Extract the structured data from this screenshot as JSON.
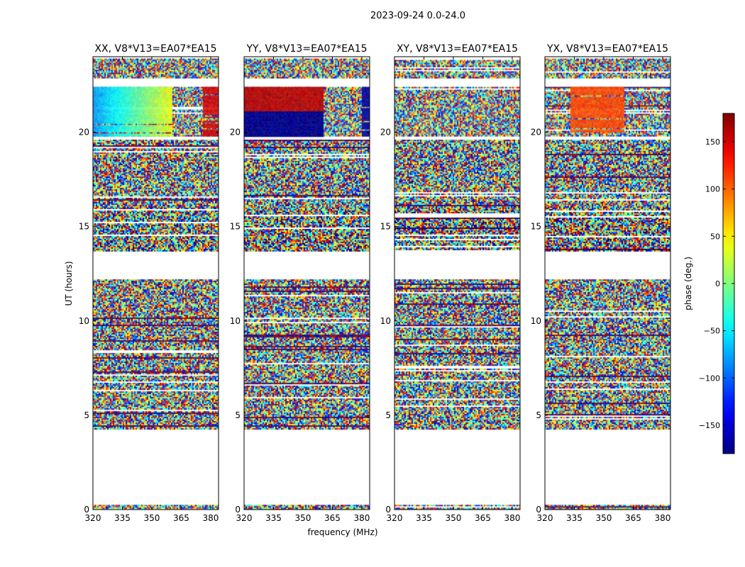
{
  "chart_data": {
    "type": "heatmap",
    "suptitle": "2023-09-24 0.0-24.0",
    "xlabel": "frequency (MHz)",
    "ylabel": "UT (hours)",
    "xlim": [
      320,
      384
    ],
    "ylim": [
      0,
      24
    ],
    "xticks": [
      320,
      335,
      350,
      365,
      380
    ],
    "yticks": [
      0,
      5,
      10,
      15,
      20
    ],
    "panels": [
      {
        "title": "XX, V8*V13=EA07*EA15",
        "blocks": [
          {
            "f": [
              320,
              360
            ],
            "t": [
              19.8,
              22.4
            ],
            "kind": "gradient",
            "from": -80,
            "to": 40
          },
          {
            "f": [
              376,
              384
            ],
            "t": [
              19.8,
              22.4
            ],
            "kind": "uniform",
            "phase": 150
          }
        ]
      },
      {
        "title": "YY, V8*V13=EA07*EA15",
        "blocks": [
          {
            "f": [
              320,
              360
            ],
            "t": [
              21.1,
              22.4
            ],
            "kind": "uniform",
            "phase": 160
          },
          {
            "f": [
              320,
              360
            ],
            "t": [
              19.8,
              21.1
            ],
            "kind": "uniform",
            "phase": -175
          },
          {
            "f": [
              380,
              384
            ],
            "t": [
              19.8,
              22.4
            ],
            "kind": "uniform",
            "phase": -170
          }
        ]
      },
      {
        "title": "XY, V8*V13=EA07*EA15",
        "blocks": []
      },
      {
        "title": "YX, V8*V13=EA07*EA15",
        "blocks": [
          {
            "f": [
              333,
              360
            ],
            "t": [
              20.0,
              22.4
            ],
            "kind": "uniform",
            "phase": 110
          }
        ]
      }
    ],
    "data_time_ranges": [
      [
        0.0,
        0.25
      ],
      [
        4.3,
        12.2
      ],
      [
        13.7,
        16.0
      ],
      [
        16.0,
        19.6
      ],
      [
        19.8,
        22.4
      ],
      [
        22.9,
        23.9
      ]
    ],
    "colorbar": {
      "label": "phase (deg.)",
      "range": [
        -180,
        180
      ],
      "ticks": [
        -150,
        -100,
        -50,
        0,
        50,
        100,
        150
      ],
      "colormap": "jet"
    }
  }
}
